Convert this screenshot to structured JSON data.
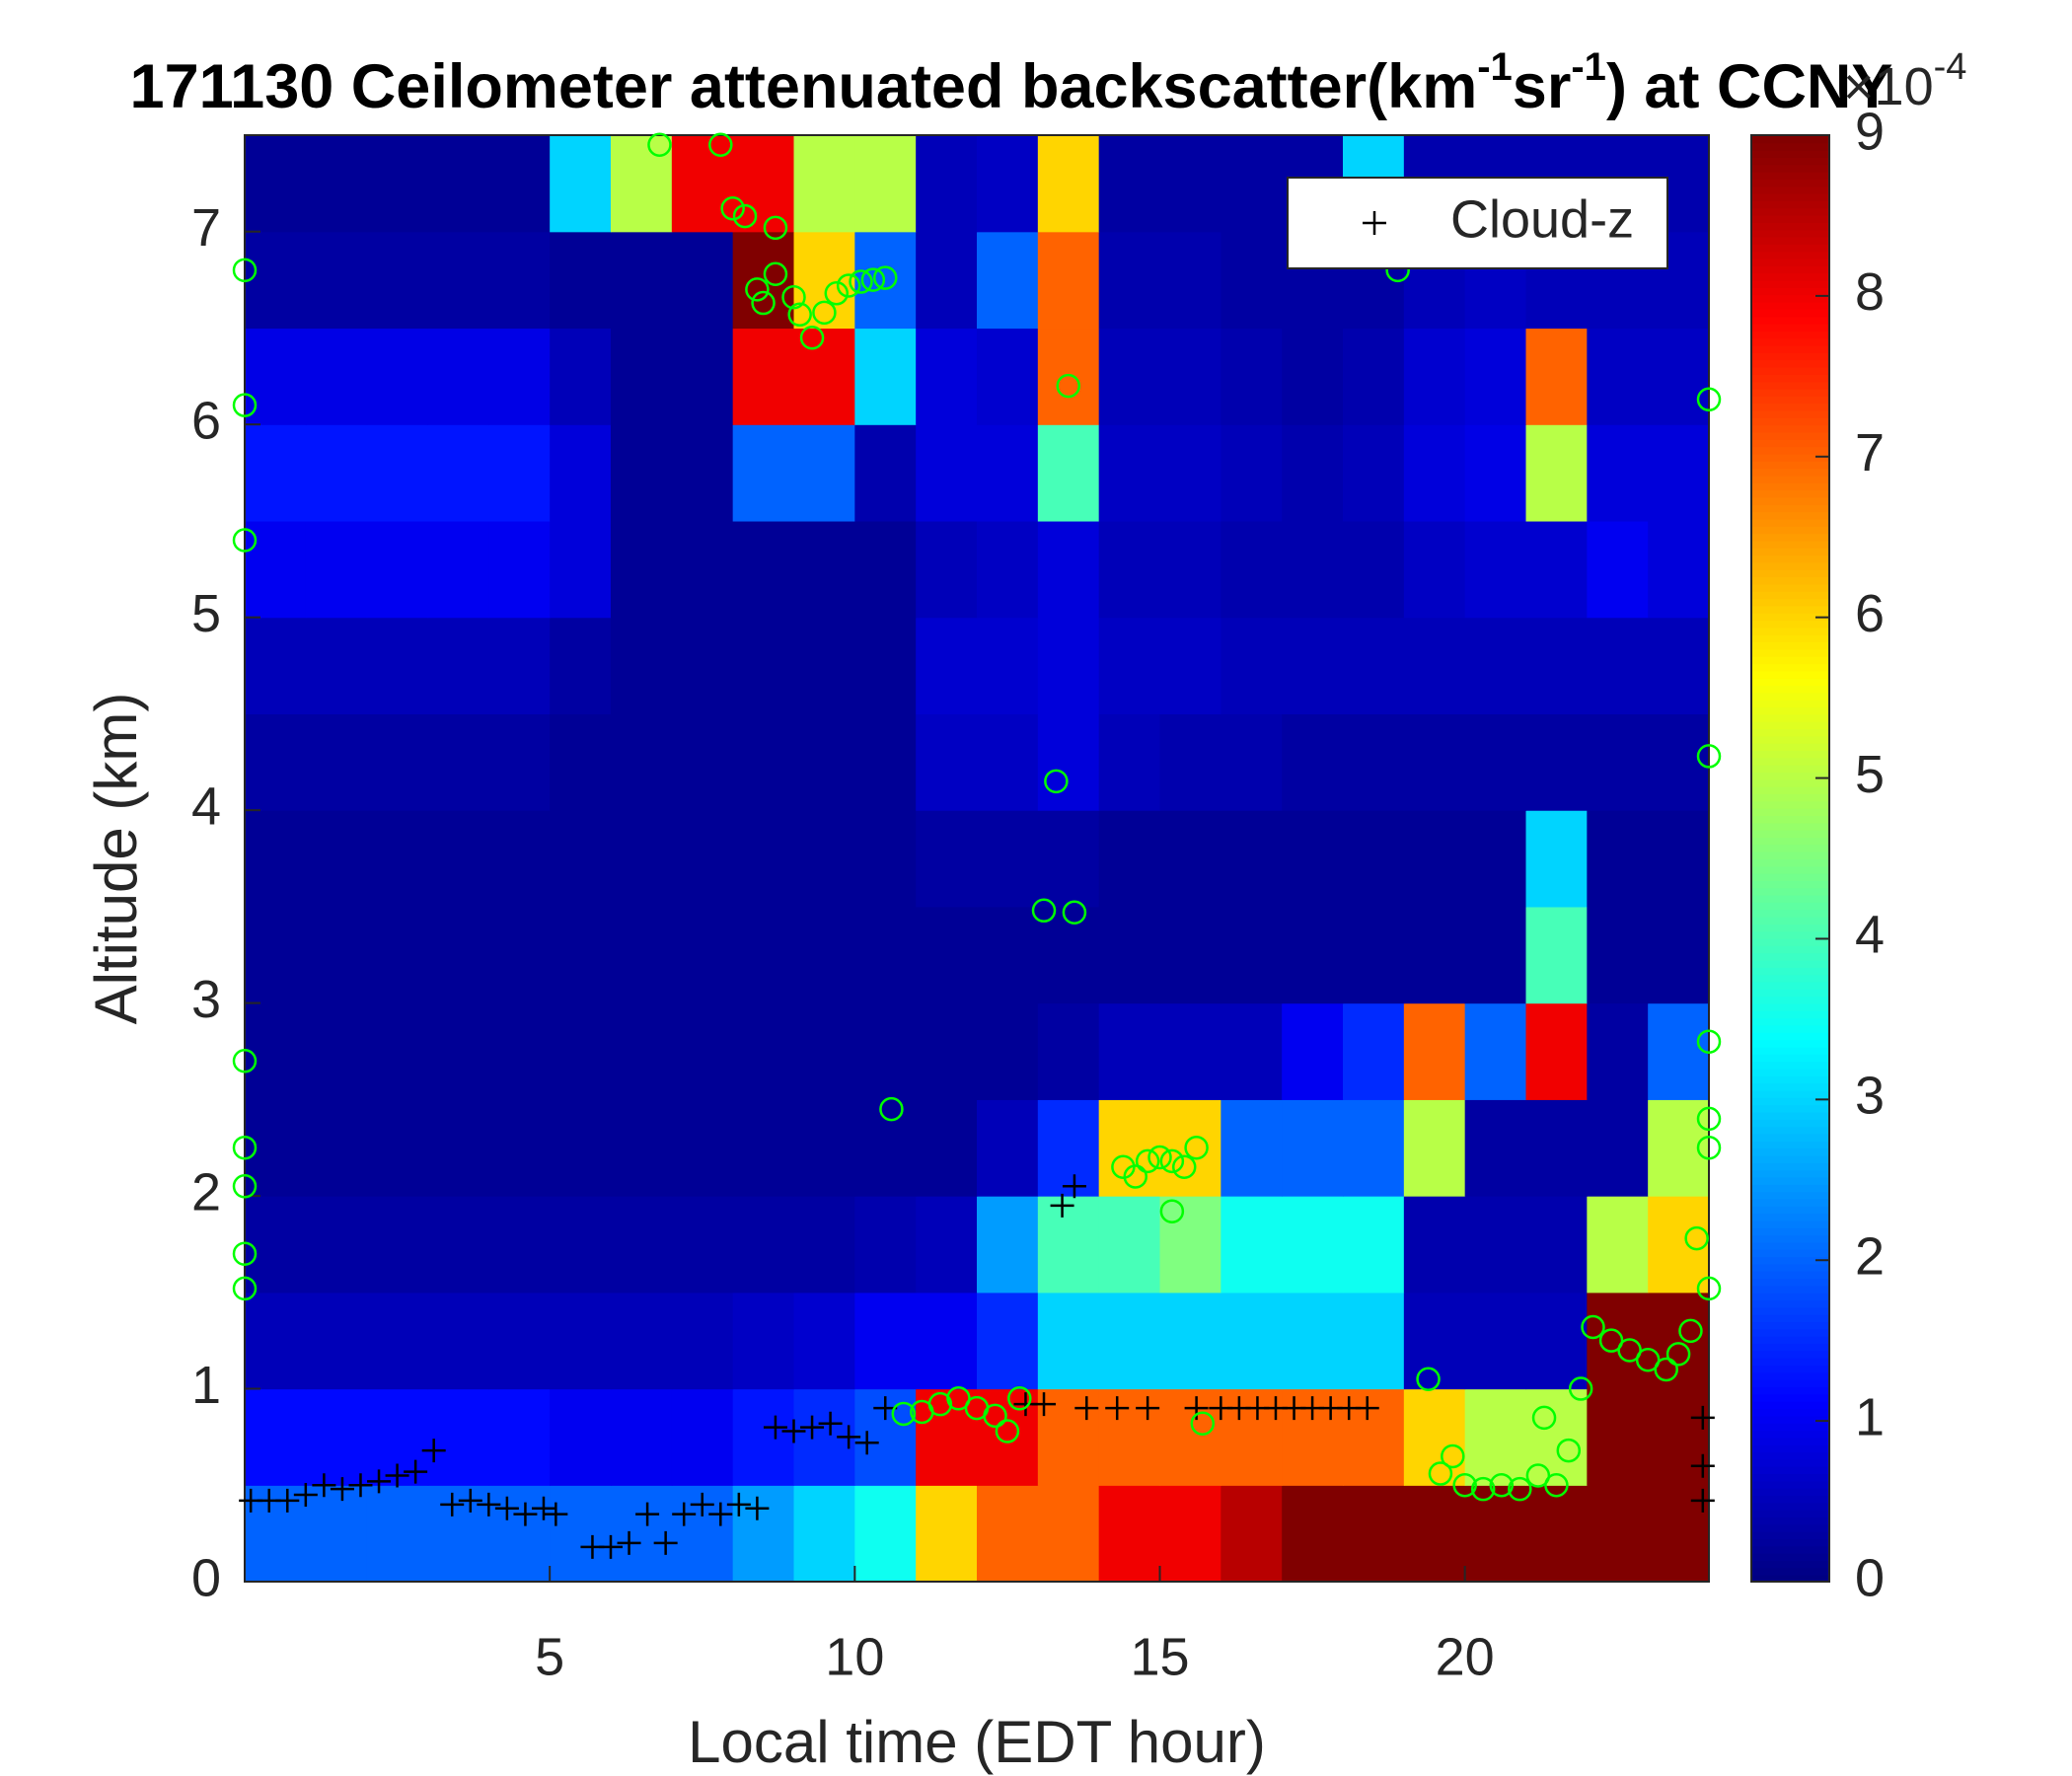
{
  "chart_data": {
    "type": "heatmap",
    "title": [
      "171130 Ceilometer attenuated backscatter(km",
      "-1",
      "sr",
      "-1",
      ") at CCNY"
    ],
    "x_label": "Local time (EDT hour)",
    "y_label": "Altitude (km)",
    "xlim": [
      0,
      24
    ],
    "ylim": [
      0,
      7.5
    ],
    "xticks": [
      5,
      10,
      15,
      20
    ],
    "yticks": [
      0,
      1,
      2,
      3,
      4,
      5,
      6,
      7
    ],
    "colorbar": {
      "clim": [
        0,
        9
      ],
      "ticks": [
        0,
        1,
        2,
        3,
        4,
        5,
        6,
        7,
        8,
        9
      ],
      "exponent": [
        "×10",
        "-4"
      ]
    },
    "xbins": [
      0,
      1,
      2,
      3,
      4,
      5,
      6,
      7,
      8,
      9,
      10,
      11,
      12,
      13,
      14,
      15,
      16,
      17,
      18,
      19,
      20,
      21,
      22,
      23,
      24
    ],
    "ybins": [
      0,
      0.5,
      1,
      1.5,
      2,
      2.5,
      3,
      3.5,
      4,
      4.5,
      5,
      5.5,
      6,
      6.5,
      7,
      7.5
    ],
    "values": [
      [
        2,
        2,
        2,
        2,
        2,
        2,
        2,
        2,
        2.5,
        3,
        3.5,
        6,
        7,
        7,
        8,
        8,
        8.5,
        9,
        9,
        9,
        9,
        9,
        9,
        9
      ],
      [
        1.2,
        1.2,
        1.2,
        1.2,
        1.2,
        1,
        1,
        1,
        1.3,
        1.5,
        1.8,
        8,
        8,
        7,
        7,
        7,
        7,
        7,
        7,
        6,
        5,
        5,
        9,
        9
      ],
      [
        0.5,
        0.5,
        0.5,
        0.5,
        0.5,
        0.5,
        0.5,
        0.5,
        0.6,
        0.7,
        1,
        1,
        1.5,
        3,
        3,
        3,
        3,
        3,
        3,
        0.5,
        0.5,
        0.5,
        9,
        9
      ],
      [
        0.3,
        0.3,
        0.3,
        0.3,
        0.3,
        0.3,
        0.3,
        0.3,
        0.3,
        0.3,
        0.4,
        0.5,
        2.5,
        4,
        4,
        4.5,
        3.5,
        3.5,
        3.5,
        0.4,
        0.4,
        0.4,
        5,
        6
      ],
      [
        0.2,
        0.2,
        0.2,
        0.2,
        0.2,
        0.2,
        0.2,
        0.2,
        0.2,
        0.2,
        0.2,
        0.2,
        0.5,
        1.5,
        6,
        6,
        2,
        2,
        2,
        5,
        0.3,
        0.3,
        0.3,
        5
      ],
      [
        0.2,
        0.2,
        0.2,
        0.2,
        0.2,
        0.2,
        0.2,
        0.2,
        0.2,
        0.2,
        0.2,
        0.2,
        0.2,
        0.3,
        0.5,
        0.5,
        0.5,
        1,
        1.5,
        7,
        2,
        8,
        0.3,
        2
      ],
      [
        0.2,
        0.2,
        0.2,
        0.2,
        0.2,
        0.2,
        0.2,
        0.2,
        0.2,
        0.2,
        0.2,
        0.2,
        0.2,
        0.2,
        0.2,
        0.2,
        0.2,
        0.2,
        0.2,
        0.2,
        0.2,
        4,
        0.2,
        0.2
      ],
      [
        0.2,
        0.2,
        0.2,
        0.2,
        0.2,
        0.2,
        0.2,
        0.2,
        0.2,
        0.2,
        0.2,
        0.3,
        0.3,
        0.3,
        0.2,
        0.2,
        0.2,
        0.2,
        0.2,
        0.2,
        0.2,
        3,
        0.2,
        0.2
      ],
      [
        0.3,
        0.3,
        0.3,
        0.3,
        0.3,
        0.2,
        0.2,
        0.2,
        0.2,
        0.2,
        0.2,
        0.6,
        0.6,
        0.8,
        0.5,
        0.4,
        0.4,
        0.3,
        0.3,
        0.3,
        0.3,
        0.3,
        0.3,
        0.3
      ],
      [
        0.5,
        0.5,
        0.5,
        0.5,
        0.5,
        0.3,
        0.2,
        0.2,
        0.2,
        0.2,
        0.2,
        0.7,
        0.7,
        0.8,
        0.6,
        0.6,
        0.5,
        0.5,
        0.5,
        0.5,
        0.5,
        0.5,
        0.5,
        0.5
      ],
      [
        1,
        1,
        1,
        1,
        1,
        0.8,
        0.2,
        0.2,
        0.2,
        0.2,
        0.2,
        0.5,
        0.6,
        0.8,
        0.5,
        0.5,
        0.4,
        0.4,
        0.4,
        0.6,
        0.7,
        0.7,
        1,
        0.8
      ],
      [
        1.3,
        1.3,
        1.3,
        1.3,
        1.3,
        0.8,
        0.2,
        0.2,
        2,
        2,
        0.4,
        0.8,
        0.8,
        4,
        0.6,
        0.6,
        0.5,
        0.4,
        0.5,
        0.8,
        0.9,
        5,
        0.8,
        0.8
      ],
      [
        0.9,
        0.9,
        0.9,
        0.9,
        0.9,
        0.5,
        0.2,
        0.2,
        8,
        8,
        3,
        0.8,
        0.7,
        7,
        0.5,
        0.5,
        0.4,
        0.3,
        0.4,
        0.7,
        0.8,
        7,
        0.6,
        0.6
      ],
      [
        0.3,
        0.3,
        0.3,
        0.3,
        0.3,
        0.2,
        0.2,
        0.2,
        9,
        6,
        2,
        0.5,
        2,
        7,
        0.4,
        0.4,
        0.3,
        0.3,
        0.3,
        0.5,
        0.6,
        0.5,
        0.5,
        0.5
      ],
      [
        0.2,
        0.2,
        0.2,
        0.2,
        0.2,
        3,
        5,
        8,
        8,
        5,
        5,
        0.5,
        0.6,
        6,
        0.3,
        0.3,
        0.3,
        0.3,
        3,
        0.4,
        0.4,
        0.4,
        0.4,
        0.4
      ]
    ],
    "series": [
      {
        "name": "Cloud-z",
        "color": "#000000",
        "marker": "plus",
        "x": [
          0.1,
          0.4,
          0.7,
          1.0,
          1.3,
          1.6,
          1.9,
          2.2,
          2.5,
          2.8,
          3.1,
          3.4,
          3.7,
          4.0,
          4.3,
          4.6,
          4.9,
          5.1,
          5.7,
          6.0,
          6.3,
          6.6,
          6.9,
          7.2,
          7.5,
          7.8,
          8.1,
          8.4,
          8.7,
          9.0,
          9.3,
          9.6,
          9.9,
          10.2,
          10.5,
          12.8,
          13.1,
          13.4,
          13.6,
          13.8,
          14.3,
          14.8,
          15.6,
          16.0,
          16.3,
          16.6,
          16.9,
          17.2,
          17.5,
          17.8,
          18.1,
          18.4,
          23.9,
          23.9,
          23.9
        ],
        "values": [
          0.42,
          0.42,
          0.42,
          0.45,
          0.5,
          0.48,
          0.5,
          0.52,
          0.55,
          0.57,
          0.68,
          0.4,
          0.42,
          0.4,
          0.38,
          0.35,
          0.38,
          0.35,
          0.18,
          0.18,
          0.2,
          0.35,
          0.2,
          0.35,
          0.4,
          0.35,
          0.4,
          0.38,
          0.8,
          0.78,
          0.8,
          0.82,
          0.75,
          0.72,
          0.9,
          0.92,
          0.92,
          1.95,
          2.05,
          0.9,
          0.9,
          0.9,
          0.9,
          0.9,
          0.9,
          0.9,
          0.9,
          0.9,
          0.9,
          0.9,
          0.9,
          0.9,
          0.85,
          0.6,
          0.42
        ]
      },
      {
        "color": "#00ff00",
        "marker": "circle",
        "x": [
          0,
          0,
          0,
          0,
          0,
          0,
          0,
          0,
          6.8,
          7.8,
          8.0,
          8.2,
          8.7,
          8.4,
          8.5,
          8.7,
          9.0,
          9.1,
          9.3,
          9.5,
          9.7,
          9.9,
          10.1,
          10.3,
          10.5,
          13.5,
          13.3,
          13.1,
          13.6,
          10.6,
          14.4,
          14.6,
          14.8,
          15.0,
          15.2,
          15.2,
          15.4,
          15.6,
          10.8,
          11.1,
          11.4,
          11.7,
          12.0,
          12.3,
          12.5,
          12.7,
          15.7,
          19.4,
          19.6,
          19.8,
          20.0,
          20.3,
          20.6,
          20.9,
          21.2,
          21.3,
          21.5,
          21.7,
          21.9,
          22.1,
          22.4,
          22.7,
          23.0,
          23.3,
          23.5,
          23.7,
          23.8,
          24,
          24,
          24,
          24,
          24,
          24,
          18.9
        ],
        "values": [
          6.8,
          6.1,
          5.4,
          2.7,
          2.25,
          2.05,
          1.7,
          1.52,
          7.45,
          7.45,
          7.12,
          7.08,
          7.02,
          6.7,
          6.63,
          6.78,
          6.66,
          6.57,
          6.45,
          6.58,
          6.68,
          6.72,
          6.74,
          6.75,
          6.76,
          6.2,
          4.15,
          3.48,
          3.47,
          2.45,
          2.15,
          2.1,
          2.18,
          2.2,
          2.18,
          1.92,
          2.15,
          2.25,
          0.87,
          0.88,
          0.92,
          0.95,
          0.9,
          0.86,
          0.78,
          0.95,
          0.82,
          1.05,
          0.56,
          0.65,
          0.5,
          0.48,
          0.5,
          0.48,
          0.55,
          0.85,
          0.5,
          0.68,
          1.0,
          1.32,
          1.25,
          1.2,
          1.15,
          1.1,
          1.18,
          1.3,
          1.78,
          2.4,
          2.25,
          2.8,
          6.13,
          4.28,
          1.52,
          6.8
        ]
      }
    ]
  }
}
